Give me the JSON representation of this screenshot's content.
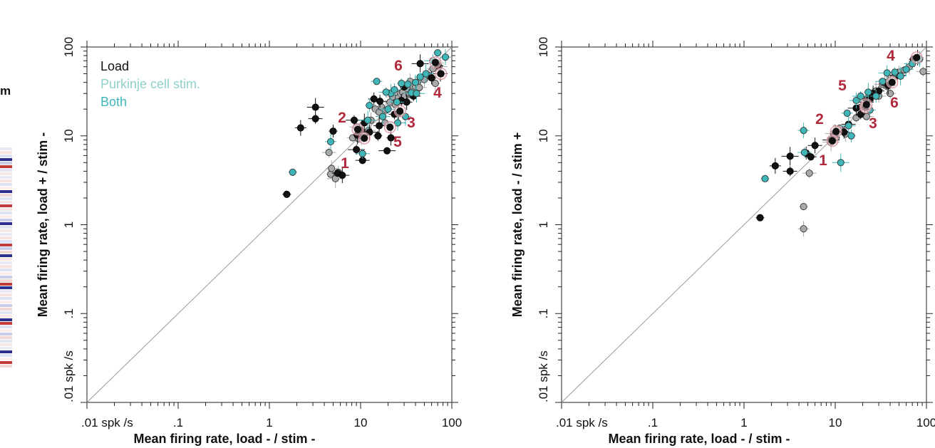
{
  "colors": {
    "load": "#111111",
    "purkinje": "#a7a9ab",
    "both": "#3fb6b8",
    "highlight": "#b0283c",
    "identity": "#9a9a9a"
  },
  "left_fragment": {
    "text": "m"
  },
  "chart_data": [
    {
      "type": "scatter",
      "scale": "log",
      "xlim": [
        0.01,
        100
      ],
      "ylim": [
        0.01,
        100
      ],
      "xlabel": "Mean firing rate, load - / stim -",
      "ylabel": "Mean firing rate, load + / stim -",
      "x_tick_labels": [
        ".01 spk /s",
        ".1",
        "1",
        "10",
        "100"
      ],
      "y_tick_labels": [
        ".01 spk /s",
        ".1",
        "1",
        "10",
        "100"
      ],
      "legend": [
        {
          "label": "Load",
          "series": "load",
          "color": "#111111"
        },
        {
          "label": "Purkinje cell stim.",
          "series": "purkinje",
          "color": "#8fd0cc"
        },
        {
          "label": "Both",
          "series": "both",
          "color": "#3fb6b8"
        }
      ],
      "identity_line": true,
      "series": [
        {
          "name": "Load",
          "key": "load",
          "points": [
            [
              1.55,
              2.2
            ],
            [
              2.2,
              12.3
            ],
            [
              3.2,
              15.6
            ],
            [
              3.2,
              21
            ],
            [
              5.0,
              11.3
            ],
            [
              5.6,
              3.8
            ],
            [
              6.3,
              3.6
            ],
            [
              8.5,
              15.0
            ],
            [
              9.2,
              10.2
            ],
            [
              9.8,
              11.7
            ],
            [
              10.5,
              5.3
            ],
            [
              12.5,
              11.0
            ],
            [
              15.5,
              10.0
            ],
            [
              16.0,
              13.0
            ],
            [
              16.3,
              24.5
            ],
            [
              19.5,
              6.8
            ],
            [
              21.5,
              9.5
            ],
            [
              23.5,
              17.5
            ],
            [
              26.0,
              18.0
            ],
            [
              28.0,
              25.0
            ],
            [
              30.0,
              35.5
            ],
            [
              32.0,
              24.0
            ],
            [
              38.0,
              28.0
            ],
            [
              45.0,
              65.0
            ],
            [
              60.0,
              45.0
            ],
            [
              70.0,
              62.0
            ],
            [
              75.0,
              50.0
            ],
            [
              9.0,
              7.0
            ],
            [
              11.0,
              14.0
            ],
            [
              14.0,
              26.0
            ]
          ]
        },
        {
          "name": "Purkinje cell stim.",
          "key": "purkinje",
          "points": [
            [
              4.7,
              3.7
            ],
            [
              4.8,
              4.3
            ],
            [
              4.5,
              6.5
            ],
            [
              5.3,
              3.3
            ],
            [
              5.7,
              3.9
            ],
            [
              8.2,
              9.5
            ],
            [
              9.0,
              12.6
            ],
            [
              9.5,
              9.3
            ],
            [
              10.2,
              10.0
            ],
            [
              11.0,
              10.4
            ],
            [
              12.2,
              11.5
            ],
            [
              13.0,
              15.0
            ],
            [
              14.5,
              20.0
            ],
            [
              16.0,
              18.5
            ],
            [
              17.0,
              21.0
            ],
            [
              18.5,
              14.0
            ],
            [
              19.0,
              19.5
            ],
            [
              21.0,
              24.0
            ],
            [
              22.5,
              27.5
            ],
            [
              24.0,
              22.5
            ],
            [
              26.0,
              27.0
            ],
            [
              27.5,
              30.0
            ],
            [
              29.0,
              31.0
            ],
            [
              30.5,
              28.0
            ],
            [
              32.0,
              34.5
            ],
            [
              34.0,
              29.0
            ],
            [
              35.0,
              41.0
            ],
            [
              37.0,
              32.0
            ],
            [
              40.0,
              36.0
            ],
            [
              42.0,
              40.0
            ],
            [
              44.0,
              35.0
            ],
            [
              50.0,
              43.0
            ],
            [
              56.0,
              48.0
            ],
            [
              62.0,
              57.0
            ],
            [
              68.0,
              66.0
            ],
            [
              72.0,
              60.0
            ],
            [
              66.0,
              39.0
            ],
            [
              10.8,
              9.6
            ]
          ]
        },
        {
          "name": "Both",
          "key": "both",
          "points": [
            [
              1.8,
              3.9
            ],
            [
              4.7,
              8.6
            ],
            [
              10.5,
              6.3
            ],
            [
              12.0,
              15.0
            ],
            [
              12.5,
              22.0
            ],
            [
              15.0,
              41.0
            ],
            [
              17.5,
              16.5
            ],
            [
              20.0,
              20.0
            ],
            [
              21.5,
              30.0
            ],
            [
              23.5,
              33.0
            ],
            [
              25.0,
              24.0
            ],
            [
              25.5,
              14.0
            ],
            [
              28.0,
              39.0
            ],
            [
              31.0,
              16.5
            ],
            [
              33.0,
              38.0
            ],
            [
              36.0,
              30.5
            ],
            [
              40.0,
              40.0
            ],
            [
              45.0,
              46.0
            ],
            [
              52.0,
              50.0
            ],
            [
              62.0,
              70.0
            ],
            [
              70.0,
              86.0
            ],
            [
              85.0,
              77.0
            ],
            [
              19.0,
              31.0
            ],
            [
              41.0,
              30.0
            ]
          ]
        }
      ],
      "highlighted_cases": [
        {
          "label": "1",
          "x": 11.0,
          "y": 9.4
        },
        {
          "label": "2",
          "x": 9.3,
          "y": 11.8
        },
        {
          "label": "3",
          "x": 27.0,
          "y": 19.0
        },
        {
          "label": "4",
          "x": 76.0,
          "y": 50.0
        },
        {
          "label": "5",
          "x": 21.0,
          "y": 12.5
        },
        {
          "label": "6",
          "x": 66.0,
          "y": 67.0
        }
      ]
    },
    {
      "type": "scatter",
      "scale": "log",
      "xlim": [
        0.01,
        100
      ],
      "ylim": [
        0.01,
        100
      ],
      "xlabel": "Mean firing rate, load - / stim -",
      "ylabel": "Mean firing rate, load - / stim +",
      "x_tick_labels": [
        ".01 spk /s",
        ".1",
        "1",
        "10",
        "100"
      ],
      "y_tick_labels": [
        ".01 spk /s",
        ".1",
        "1",
        "10",
        "100"
      ],
      "identity_line": true,
      "series": [
        {
          "name": "Load",
          "key": "load",
          "points": [
            [
              1.5,
              1.2
            ],
            [
              2.2,
              4.6
            ],
            [
              3.2,
              4.0
            ],
            [
              3.2,
              5.9
            ],
            [
              4.8,
              6.4
            ],
            [
              5.4,
              5.8
            ],
            [
              6.0,
              7.8
            ],
            [
              9.0,
              9.0
            ],
            [
              10.0,
              10.5
            ],
            [
              12.5,
              11.0
            ],
            [
              14.0,
              13.5
            ],
            [
              17.0,
              20.5
            ],
            [
              19.0,
              17.5
            ],
            [
              21.0,
              22.0
            ],
            [
              22.0,
              24.0
            ],
            [
              24.0,
              26.0
            ],
            [
              26.0,
              30.0
            ],
            [
              30.0,
              32.0
            ],
            [
              38.0,
              37.0
            ],
            [
              48.0,
              48.0
            ],
            [
              72.0,
              73.0
            ],
            [
              80.0,
              76.0
            ]
          ]
        },
        {
          "name": "Purkinje cell stim.",
          "key": "purkinje",
          "points": [
            [
              4.5,
              1.6
            ],
            [
              4.5,
              0.9
            ],
            [
              5.2,
              3.8
            ],
            [
              9.0,
              8.5
            ],
            [
              10.2,
              9.5
            ],
            [
              11.2,
              12.2
            ],
            [
              13.0,
              10.5
            ],
            [
              17.0,
              16.0
            ],
            [
              19.0,
              21.0
            ],
            [
              21.0,
              21.5
            ],
            [
              22.0,
              16.5
            ],
            [
              23.0,
              27.0
            ],
            [
              25.5,
              30.0
            ],
            [
              28.0,
              32.0
            ],
            [
              30.0,
              28.0
            ],
            [
              33.0,
              38.0
            ],
            [
              37.0,
              36.0
            ],
            [
              40.0,
              30.0
            ],
            [
              43.0,
              45.0
            ],
            [
              50.0,
              52.0
            ],
            [
              57.0,
              55.0
            ],
            [
              65.0,
              60.0
            ],
            [
              92.0,
              53.0
            ],
            [
              9.6,
              10.6
            ],
            [
              35.0,
              40.0
            ]
          ]
        },
        {
          "name": "Both",
          "key": "both",
          "points": [
            [
              1.7,
              3.3
            ],
            [
              4.5,
              11.5
            ],
            [
              4.6,
              6.5
            ],
            [
              11.5,
              5.0
            ],
            [
              15.0,
              10.0
            ],
            [
              13.5,
              18.0
            ],
            [
              17.0,
              25.0
            ],
            [
              19.0,
              28.0
            ],
            [
              23.0,
              31.0
            ],
            [
              28.0,
              28.0
            ],
            [
              33.0,
              41.0
            ],
            [
              37.0,
              51.0
            ],
            [
              45.0,
              52.0
            ],
            [
              52.0,
              47.0
            ],
            [
              60.0,
              56.0
            ],
            [
              70.0,
              65.0
            ],
            [
              84.0,
              73.0
            ],
            [
              24.0,
              19.5
            ],
            [
              14.0,
              13.0
            ]
          ]
        }
      ],
      "highlighted_cases": [
        {
          "label": "1",
          "x": 9.3,
          "y": 8.8
        },
        {
          "label": "2",
          "x": 10.2,
          "y": 11.2
        },
        {
          "label": "3",
          "x": 21.5,
          "y": 21.0
        },
        {
          "label": "4",
          "x": 78.0,
          "y": 76.0
        },
        {
          "label": "5",
          "x": 22.0,
          "y": 22.5
        },
        {
          "label": "6",
          "x": 42.0,
          "y": 40.0
        }
      ]
    }
  ]
}
